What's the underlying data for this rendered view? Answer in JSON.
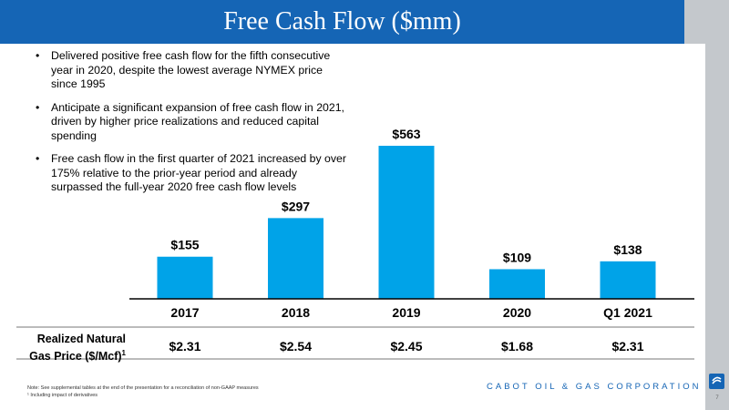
{
  "header": {
    "title": "Free Cash Flow ($mm)"
  },
  "bullets": [
    "Delivered positive free cash flow for the fifth consecutive year in 2020, despite the lowest average NYMEX price since 1995",
    "Anticipate a significant expansion of free cash flow in 2021, driven by higher price realizations and reduced capital spending",
    "Free cash flow in the first quarter of 2021 increased by over 175% relative to the prior-year period and already surpassed the full-year 2020 free cash flow levels"
  ],
  "chart_data": {
    "type": "bar",
    "title": "Free Cash Flow ($mm)",
    "categories": [
      "2017",
      "2018",
      "2019",
      "2020",
      "Q1 2021"
    ],
    "values": [
      155,
      297,
      563,
      109,
      138
    ],
    "value_labels": [
      "$155",
      "$297",
      "$563",
      "$109",
      "$138"
    ],
    "ylim": [
      0,
      600
    ],
    "grid": false,
    "bar_color": "#00a3e8",
    "realized_price_label": "Realized Natural Gas Price ($/Mcf)",
    "realized_price_footnote": "1",
    "realized_prices": [
      "$2.31",
      "$2.54",
      "$2.45",
      "$1.68",
      "$2.31"
    ]
  },
  "footer": {
    "note_line1": "Note: See supplemental tables at the end of the presentation for a reconciliation of non-GAAP measures",
    "note_line2": "¹ Including impact of derivatives",
    "company": "CABOT OIL & GAS CORPORATION",
    "page_number": "7"
  },
  "colors": {
    "title_bar": "#1565b5",
    "accent_gray": "#c4c8cc",
    "bar": "#00a3e8"
  }
}
